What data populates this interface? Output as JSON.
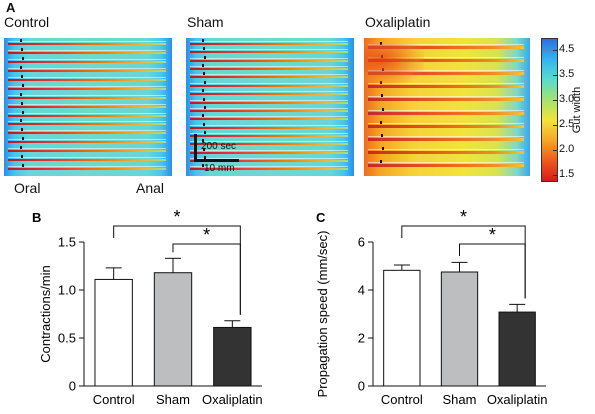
{
  "panel_a": {
    "letter": "A",
    "maps": [
      {
        "title": "Control",
        "style": "blue-red",
        "row_count": 15
      },
      {
        "title": "Sham",
        "style": "blue-red",
        "row_count": 16
      },
      {
        "title": "Oxaliplatin",
        "style": "yellow",
        "row_count": 10
      }
    ],
    "oral_label": "Oral",
    "anal_label": "Anal",
    "scale_time": "200 sec",
    "scale_length": "10 mm",
    "colorbar": {
      "label": "Gut width",
      "ticks": [
        "4.5",
        "3.5",
        "3.0",
        "2.5",
        "2.0",
        "1.5"
      ],
      "colors": [
        "#2c6fe0",
        "#34b3f0",
        "#58dccf",
        "#a5e36a",
        "#f2e33a",
        "#f5a623",
        "#ef5a1c",
        "#d7191c"
      ]
    }
  },
  "chart_data": [
    {
      "letter": "B",
      "type": "bar",
      "categories": [
        "Control",
        "Sham",
        "Oxaliplatin"
      ],
      "values": [
        1.11,
        1.18,
        0.61
      ],
      "errors": [
        0.12,
        0.15,
        0.07
      ],
      "bar_colors": [
        "#ffffff",
        "#bcbec0",
        "#333333"
      ],
      "ylabel": "Contractions/min",
      "ylim": [
        0,
        1.5
      ],
      "yticks": [
        "0",
        "0.5",
        "1.0",
        "1.5"
      ],
      "significance": [
        {
          "from": "Control",
          "to": "Oxaliplatin",
          "label": "*"
        },
        {
          "from": "Sham",
          "to": "Oxaliplatin",
          "label": "*"
        }
      ]
    },
    {
      "letter": "C",
      "type": "bar",
      "categories": [
        "Control",
        "Sham",
        "Oxaliplatin"
      ],
      "values": [
        4.82,
        4.75,
        3.08
      ],
      "errors": [
        0.22,
        0.4,
        0.32
      ],
      "bar_colors": [
        "#ffffff",
        "#bcbec0",
        "#333333"
      ],
      "ylabel": "Propagation speed (mm/sec)",
      "ylim": [
        0,
        6
      ],
      "yticks": [
        "0",
        "2",
        "4",
        "6"
      ],
      "significance": [
        {
          "from": "Control",
          "to": "Oxaliplatin",
          "label": "*"
        },
        {
          "from": "Sham",
          "to": "Oxaliplatin",
          "label": "*"
        }
      ]
    }
  ]
}
